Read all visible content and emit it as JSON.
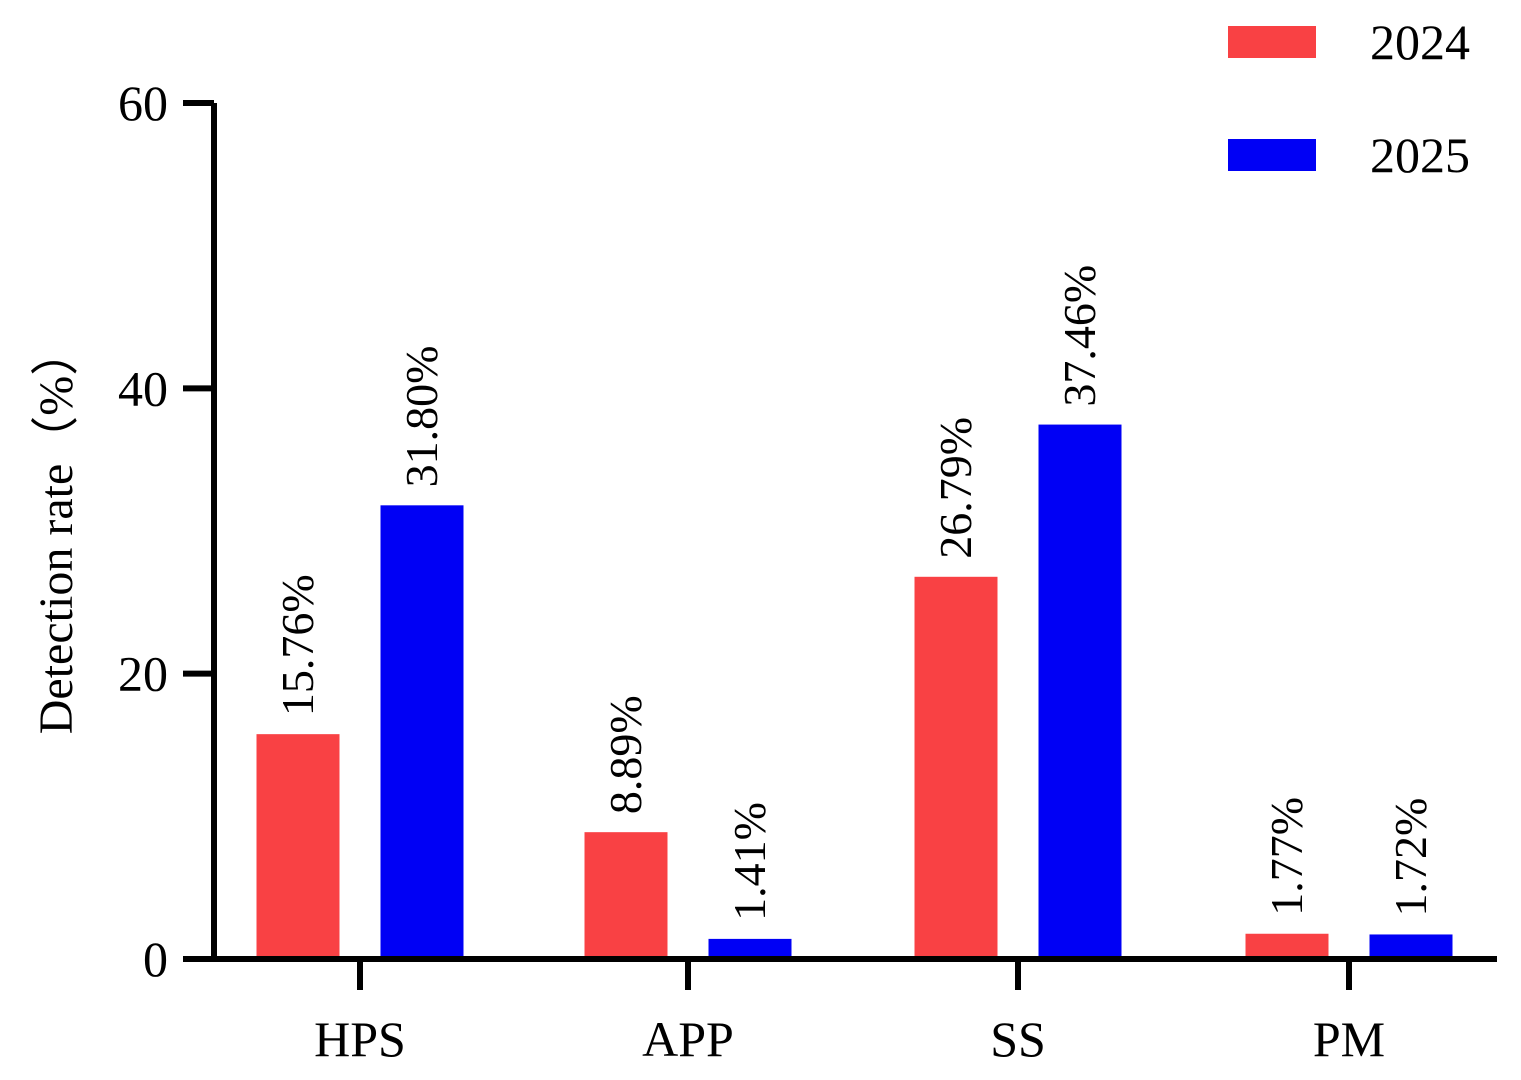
{
  "chart_data": {
    "type": "bar",
    "categories": [
      "HPS",
      "APP",
      "SS",
      "PM"
    ],
    "series": [
      {
        "name": "2024",
        "color": "#f94144",
        "values": [
          15.76,
          8.89,
          26.79,
          1.77
        ],
        "labels": [
          "15.76%",
          "8.89%",
          "26.79%",
          "1.77%"
        ]
      },
      {
        "name": "2025",
        "color": "#0000f5",
        "values": [
          31.8,
          1.41,
          37.46,
          1.72
        ],
        "labels": [
          "31.80%",
          "1.41%",
          "37.46%",
          "1.72%"
        ]
      }
    ],
    "ylabel": "Detection rate（%）",
    "xlabel": "",
    "ylim": [
      0,
      60
    ],
    "yticks": [
      0,
      20,
      40,
      60
    ],
    "grid": false,
    "legend_position": "top-right"
  }
}
